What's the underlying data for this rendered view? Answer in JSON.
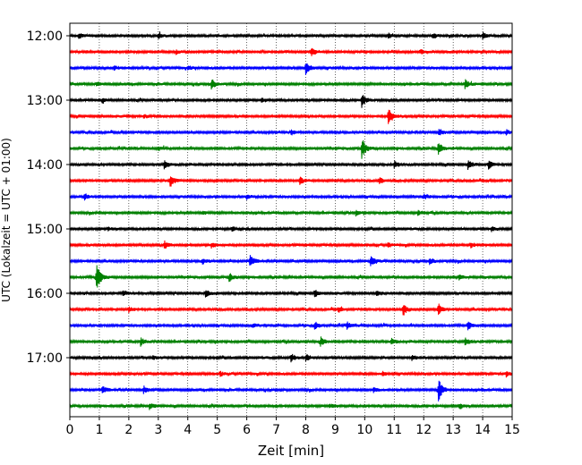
{
  "chart_data": {
    "type": "line",
    "title": "",
    "xlabel": "Zeit  [min]",
    "ylabel": "UTC (Lokalzeit = UTC + 01:00)",
    "xlim": [
      0,
      15
    ],
    "x_ticks": [
      0,
      1,
      2,
      3,
      4,
      5,
      6,
      7,
      8,
      9,
      10,
      11,
      12,
      13,
      14,
      15
    ],
    "x_tick_labels": [
      "0",
      "1",
      "2",
      "3",
      "4",
      "5",
      "6",
      "7",
      "8",
      "9",
      "10",
      "11",
      "12",
      "13",
      "14",
      "15"
    ],
    "y_tick_labels": [
      "12:00",
      "13:00",
      "14:00",
      "15:00",
      "16:00",
      "17:00"
    ],
    "vertical_grid": "dotted",
    "trace_colors": [
      "#000000",
      "#ff0000",
      "#0000ff",
      "#008000"
    ],
    "series": [
      {
        "start": "12:00",
        "events": [
          {
            "x": 0.3,
            "amp": 0.25
          },
          {
            "x": 3.0,
            "amp": 0.2
          },
          {
            "x": 10.8,
            "amp": 0.18
          },
          {
            "x": 12.3,
            "amp": 0.2
          },
          {
            "x": 14.0,
            "amp": 0.25
          }
        ]
      },
      {
        "start": "12:15",
        "events": [
          {
            "x": 8.2,
            "amp": 0.35
          },
          {
            "x": 3.6,
            "amp": 0.15
          },
          {
            "x": 11.9,
            "amp": 0.15
          }
        ]
      },
      {
        "start": "12:30",
        "events": [
          {
            "x": 8.0,
            "amp": 0.5
          },
          {
            "x": 1.5,
            "amp": 0.15
          },
          {
            "x": 4.0,
            "amp": 0.15
          }
        ]
      },
      {
        "start": "12:45",
        "events": [
          {
            "x": 4.8,
            "amp": 0.4
          },
          {
            "x": 13.4,
            "amp": 0.4
          },
          {
            "x": 0.9,
            "amp": 0.15
          }
        ]
      },
      {
        "start": "13:00",
        "events": [
          {
            "x": 9.9,
            "amp": 0.55
          },
          {
            "x": 1.1,
            "amp": 0.18
          },
          {
            "x": 6.5,
            "amp": 0.15
          }
        ]
      },
      {
        "start": "13:15",
        "events": [
          {
            "x": 10.8,
            "amp": 0.85
          },
          {
            "x": 2.5,
            "amp": 0.15
          }
        ]
      },
      {
        "start": "13:30",
        "events": [
          {
            "x": 7.5,
            "amp": 0.2
          },
          {
            "x": 12.5,
            "amp": 0.25
          },
          {
            "x": 14.8,
            "amp": 0.2
          }
        ]
      },
      {
        "start": "13:45",
        "events": [
          {
            "x": 9.9,
            "amp": 0.85
          },
          {
            "x": 12.5,
            "amp": 0.5
          },
          {
            "x": 3.0,
            "amp": 0.15
          }
        ]
      },
      {
        "start": "14:00",
        "events": [
          {
            "x": 3.2,
            "amp": 0.35
          },
          {
            "x": 11.0,
            "amp": 0.3
          },
          {
            "x": 13.5,
            "amp": 0.35
          },
          {
            "x": 14.2,
            "amp": 0.3
          }
        ]
      },
      {
        "start": "14:15",
        "events": [
          {
            "x": 3.4,
            "amp": 0.55
          },
          {
            "x": 7.8,
            "amp": 0.3
          },
          {
            "x": 10.5,
            "amp": 0.25
          }
        ]
      },
      {
        "start": "14:30",
        "events": [
          {
            "x": 0.5,
            "amp": 0.3
          },
          {
            "x": 6.0,
            "amp": 0.15
          },
          {
            "x": 12.0,
            "amp": 0.2
          }
        ]
      },
      {
        "start": "14:45",
        "events": [
          {
            "x": 9.7,
            "amp": 0.2
          },
          {
            "x": 11.8,
            "amp": 0.2
          },
          {
            "x": 4.5,
            "amp": 0.15
          }
        ]
      },
      {
        "start": "15:00",
        "events": [
          {
            "x": 5.5,
            "amp": 0.2
          },
          {
            "x": 1.3,
            "amp": 0.15
          },
          {
            "x": 14.3,
            "amp": 0.2
          }
        ]
      },
      {
        "start": "15:15",
        "events": [
          {
            "x": 3.2,
            "amp": 0.3
          },
          {
            "x": 4.8,
            "amp": 0.2
          },
          {
            "x": 10.8,
            "amp": 0.2
          },
          {
            "x": 13.6,
            "amp": 0.2
          }
        ]
      },
      {
        "start": "15:30",
        "events": [
          {
            "x": 6.1,
            "amp": 0.6
          },
          {
            "x": 10.2,
            "amp": 0.5
          },
          {
            "x": 4.5,
            "amp": 0.2
          },
          {
            "x": 12.2,
            "amp": 0.25
          }
        ]
      },
      {
        "start": "15:45",
        "events": [
          {
            "x": 0.9,
            "amp": 1.2
          },
          {
            "x": 5.4,
            "amp": 0.35
          },
          {
            "x": 13.2,
            "amp": 0.2
          }
        ]
      },
      {
        "start": "16:00",
        "events": [
          {
            "x": 4.6,
            "amp": 0.3
          },
          {
            "x": 8.3,
            "amp": 0.3
          },
          {
            "x": 10.4,
            "amp": 0.25
          },
          {
            "x": 1.8,
            "amp": 0.2
          }
        ]
      },
      {
        "start": "16:15",
        "events": [
          {
            "x": 11.3,
            "amp": 0.55
          },
          {
            "x": 12.5,
            "amp": 0.45
          },
          {
            "x": 2.0,
            "amp": 0.2
          },
          {
            "x": 9.1,
            "amp": 0.2
          }
        ]
      },
      {
        "start": "16:30",
        "events": [
          {
            "x": 8.3,
            "amp": 0.3
          },
          {
            "x": 9.4,
            "amp": 0.3
          },
          {
            "x": 13.5,
            "amp": 0.3
          },
          {
            "x": 6.2,
            "amp": 0.2
          }
        ]
      },
      {
        "start": "16:45",
        "events": [
          {
            "x": 2.4,
            "amp": 0.3
          },
          {
            "x": 8.5,
            "amp": 0.35
          },
          {
            "x": 10.9,
            "amp": 0.25
          },
          {
            "x": 13.4,
            "amp": 0.3
          }
        ]
      },
      {
        "start": "17:00",
        "events": [
          {
            "x": 7.5,
            "amp": 0.35
          },
          {
            "x": 8.0,
            "amp": 0.3
          },
          {
            "x": 11.6,
            "amp": 0.2
          },
          {
            "x": 2.8,
            "amp": 0.15
          }
        ]
      },
      {
        "start": "17:15",
        "events": [
          {
            "x": 5.1,
            "amp": 0.2
          },
          {
            "x": 10.6,
            "amp": 0.15
          },
          {
            "x": 14.8,
            "amp": 0.2
          }
        ]
      },
      {
        "start": "17:30",
        "events": [
          {
            "x": 12.5,
            "amp": 1.0
          },
          {
            "x": 1.1,
            "amp": 0.35
          },
          {
            "x": 2.5,
            "amp": 0.25
          },
          {
            "x": 10.3,
            "amp": 0.2
          }
        ]
      },
      {
        "start": "17:45",
        "events": [
          {
            "x": 2.7,
            "amp": 0.25
          },
          {
            "x": 8.8,
            "amp": 0.2
          },
          {
            "x": 13.2,
            "amp": 0.2
          }
        ]
      }
    ]
  }
}
